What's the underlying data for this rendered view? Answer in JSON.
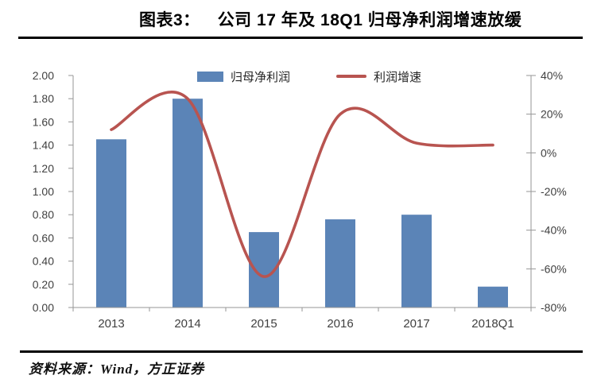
{
  "header": {
    "figure_label": "图表3：",
    "title": "公司 17 年及 18Q1 归母净利润增速放缓"
  },
  "footer": {
    "source": "资料来源：Wind，方正证券"
  },
  "colors": {
    "bar": "#5B84B7",
    "line": "#B85450",
    "axis": "#959595",
    "tick_text": "#404040",
    "rule": "#000000"
  },
  "chart_data": {
    "type": "bar+line",
    "title": "公司 17 年及 18Q1 归母净利润增速放缓",
    "categories": [
      "2013",
      "2014",
      "2015",
      "2016",
      "2017",
      "2018Q1"
    ],
    "series": [
      {
        "name": "归母净利润",
        "type": "bar",
        "axis": "left",
        "values": [
          1.45,
          1.8,
          0.65,
          0.76,
          0.8,
          0.18
        ]
      },
      {
        "name": "利润增速",
        "type": "line",
        "axis": "right",
        "unit": "%",
        "values": [
          12,
          28,
          -64,
          20,
          5,
          4
        ]
      }
    ],
    "left_axis": {
      "min": 0,
      "max": 2,
      "step": 0.2,
      "tick_labels": [
        "2.00",
        "1.80",
        "1.60",
        "1.40",
        "1.20",
        "1.00",
        "0.80",
        "0.60",
        "0.40",
        "0.20",
        "0.00"
      ]
    },
    "right_axis": {
      "min": -80,
      "max": 40,
      "step": 20,
      "tick_labels": [
        "40%",
        "20%",
        "0%",
        "-20%",
        "-40%",
        "-60%",
        "-80%"
      ]
    },
    "legend": [
      "归母净利润",
      "利润增速"
    ],
    "legend_position": "top-center",
    "grid": false
  }
}
